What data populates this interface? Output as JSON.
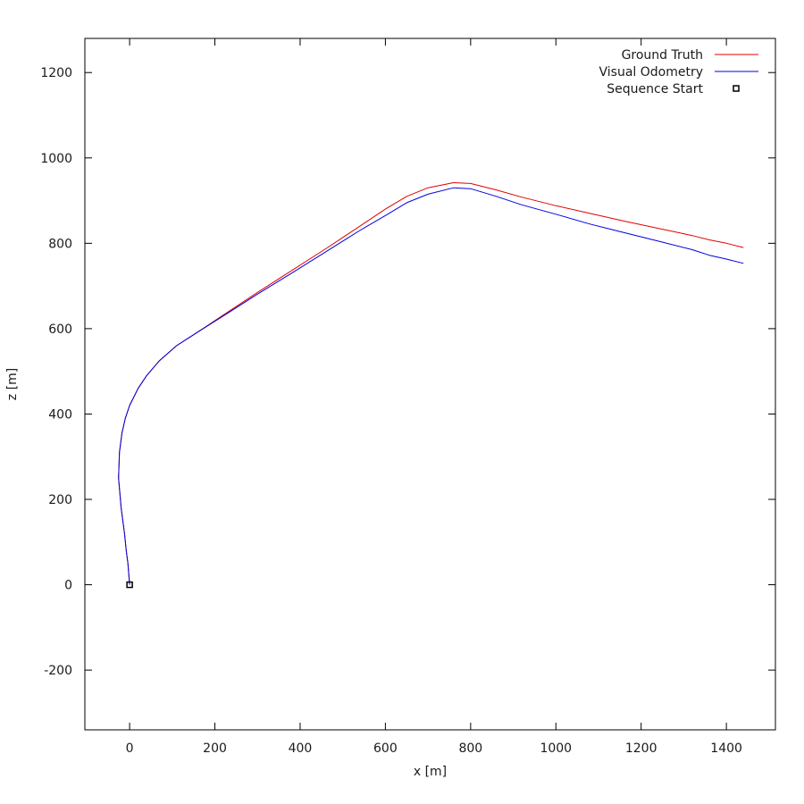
{
  "chart_data": {
    "type": "line",
    "title": "",
    "xlabel": "x [m]",
    "ylabel": "z [m]",
    "xlim": [
      -105,
      1515
    ],
    "ylim": [
      -340,
      1280
    ],
    "xticks": [
      0,
      200,
      400,
      600,
      800,
      1000,
      1200,
      1400
    ],
    "yticks": [
      -200,
      0,
      200,
      400,
      600,
      800,
      1000,
      1200
    ],
    "grid": false,
    "legend_position": "top-right",
    "series": [
      {
        "name": "Ground Truth",
        "color": "#e00000",
        "points": [
          [
            0,
            0
          ],
          [
            -4,
            50
          ],
          [
            -8,
            80
          ],
          [
            -12,
            120
          ],
          [
            -20,
            180
          ],
          [
            -26,
            250
          ],
          [
            -24,
            310
          ],
          [
            -18,
            355
          ],
          [
            -10,
            390
          ],
          [
            0,
            420
          ],
          [
            20,
            460
          ],
          [
            40,
            490
          ],
          [
            70,
            525
          ],
          [
            110,
            560
          ],
          [
            160,
            592
          ],
          [
            220,
            632
          ],
          [
            300,
            685
          ],
          [
            380,
            736
          ],
          [
            460,
            787
          ],
          [
            540,
            840
          ],
          [
            600,
            880
          ],
          [
            650,
            910
          ],
          [
            700,
            930
          ],
          [
            760,
            942
          ],
          [
            800,
            940
          ],
          [
            860,
            925
          ],
          [
            920,
            908
          ],
          [
            1000,
            888
          ],
          [
            1080,
            870
          ],
          [
            1160,
            852
          ],
          [
            1240,
            835
          ],
          [
            1320,
            818
          ],
          [
            1360,
            808
          ],
          [
            1400,
            800
          ],
          [
            1440,
            790
          ]
        ]
      },
      {
        "name": "Visual Odometry",
        "color": "#0000e0",
        "points": [
          [
            0,
            0
          ],
          [
            -4,
            50
          ],
          [
            -8,
            80
          ],
          [
            -12,
            120
          ],
          [
            -20,
            180
          ],
          [
            -26,
            250
          ],
          [
            -24,
            310
          ],
          [
            -18,
            355
          ],
          [
            -10,
            390
          ],
          [
            0,
            420
          ],
          [
            20,
            460
          ],
          [
            40,
            490
          ],
          [
            70,
            525
          ],
          [
            110,
            560
          ],
          [
            160,
            592
          ],
          [
            220,
            630
          ],
          [
            300,
            681
          ],
          [
            380,
            730
          ],
          [
            460,
            780
          ],
          [
            540,
            830
          ],
          [
            600,
            865
          ],
          [
            650,
            895
          ],
          [
            700,
            915
          ],
          [
            760,
            930
          ],
          [
            800,
            928
          ],
          [
            860,
            910
          ],
          [
            920,
            890
          ],
          [
            1000,
            868
          ],
          [
            1080,
            845
          ],
          [
            1160,
            825
          ],
          [
            1240,
            805
          ],
          [
            1320,
            785
          ],
          [
            1360,
            772
          ],
          [
            1400,
            763
          ],
          [
            1440,
            753
          ]
        ]
      },
      {
        "name": "Sequence Start",
        "marker": "square",
        "color": "#000000",
        "points": [
          [
            0,
            0
          ]
        ]
      }
    ]
  }
}
